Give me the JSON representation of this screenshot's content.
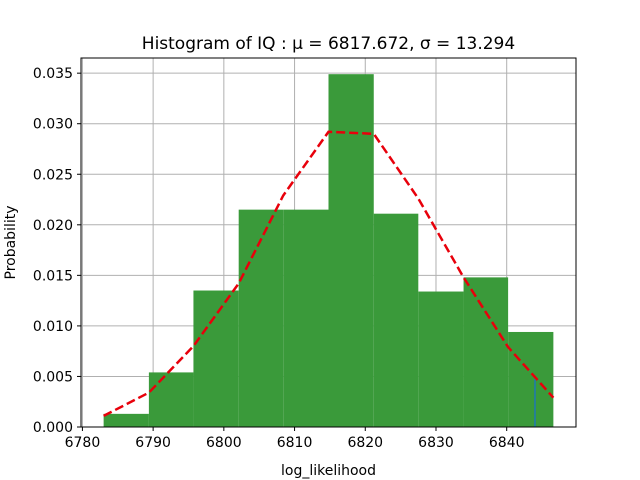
{
  "chart_data": {
    "type": "bar",
    "title": "Histogram of IQ :  μ = 6817.672,  σ = 13.294",
    "xlabel": "log_likelihood",
    "ylabel": "Probability",
    "xlim": [
      6779.8,
      6849.8
    ],
    "ylim": [
      0.0,
      0.0365
    ],
    "xticks": [
      6780,
      6790,
      6800,
      6810,
      6820,
      6830,
      6840
    ],
    "yticks": [
      0.0,
      0.005,
      0.01,
      0.015,
      0.02,
      0.025,
      0.03,
      0.035
    ],
    "ytick_labels": [
      "0.000",
      "0.005",
      "0.010",
      "0.015",
      "0.020",
      "0.025",
      "0.030",
      "0.035"
    ],
    "grid": true,
    "bars": {
      "color": "#3a9a3a",
      "edges": [
        6783.0,
        6789.4,
        6795.7,
        6802.1,
        6808.4,
        6814.8,
        6821.2,
        6827.5,
        6833.9,
        6840.2,
        6846.6
      ],
      "values": [
        0.0013,
        0.0054,
        0.0135,
        0.0215,
        0.0215,
        0.0349,
        0.0211,
        0.0134,
        0.0148,
        0.0094
      ]
    },
    "series": [
      {
        "type": "line",
        "style": "dashed",
        "color": "#e8000b",
        "x": [
          6783.0,
          6789.4,
          6795.7,
          6802.1,
          6808.4,
          6814.8,
          6821.2,
          6827.5,
          6833.9,
          6840.2,
          6846.6
        ],
        "y": [
          0.0011,
          0.0034,
          0.008,
          0.0142,
          0.0229,
          0.0292,
          0.029,
          0.0226,
          0.0148,
          0.0079,
          0.0029
        ]
      }
    ],
    "marker_line": {
      "color": "#1f77b4",
      "x": 6844.0,
      "y": [
        0.0,
        0.0047
      ]
    }
  }
}
